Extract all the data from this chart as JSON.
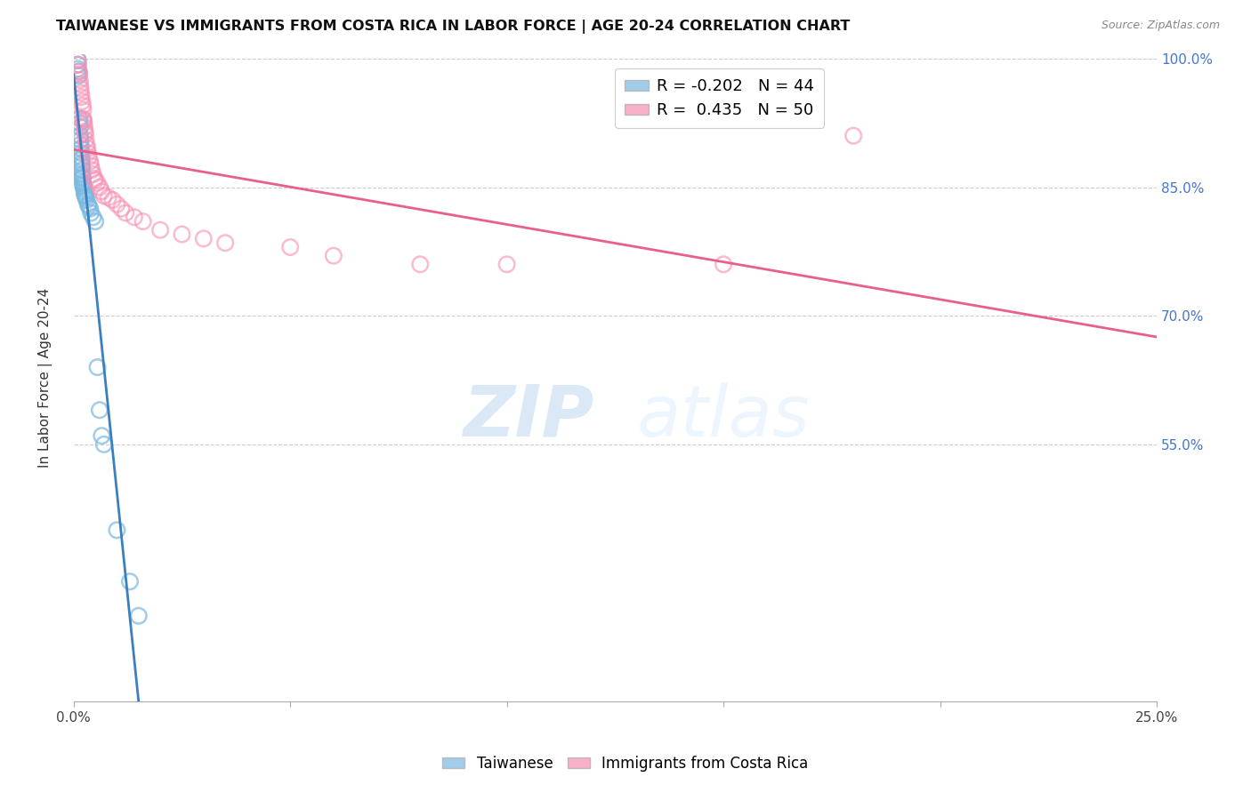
{
  "title": "TAIWANESE VS IMMIGRANTS FROM COSTA RICA IN LABOR FORCE | AGE 20-24 CORRELATION CHART",
  "source": "Source: ZipAtlas.com",
  "ylabel": "In Labor Force | Age 20-24",
  "xlim": [
    0.0,
    0.25
  ],
  "ylim": [
    0.25,
    1.005
  ],
  "x_tick_positions": [
    0.0,
    0.05,
    0.1,
    0.15,
    0.2,
    0.25
  ],
  "x_tick_labels": [
    "0.0%",
    "",
    "",
    "",
    "",
    "25.0%"
  ],
  "y_tick_positions": [
    0.55,
    0.7,
    0.85,
    1.0
  ],
  "right_y_tick_labels": [
    "55.0%",
    "70.0%",
    "85.0%",
    "100.0%"
  ],
  "blue_R": -0.202,
  "blue_N": 44,
  "pink_R": 0.435,
  "pink_N": 50,
  "blue_color": "#7ab9e0",
  "pink_color": "#f78fb3",
  "blue_line_color": "#3a7fc1",
  "pink_line_color": "#e8608a",
  "watermark_zip": "ZIP",
  "watermark_atlas": "atlas",
  "blue_x": [
    0.001,
    0.001,
    0.001,
    0.0012,
    0.0012,
    0.0014,
    0.0014,
    0.0015,
    0.0015,
    0.0016,
    0.0016,
    0.0017,
    0.0017,
    0.0018,
    0.0018,
    0.0019,
    0.0019,
    0.002,
    0.002,
    0.002,
    0.0021,
    0.0021,
    0.0022,
    0.0022,
    0.0023,
    0.0024,
    0.0025,
    0.0025,
    0.0027,
    0.0028,
    0.003,
    0.0033,
    0.0035,
    0.0038,
    0.004,
    0.0045,
    0.005,
    0.0055,
    0.006,
    0.0065,
    0.007,
    0.01,
    0.013,
    0.015
  ],
  "blue_y": [
    0.998,
    0.993,
    0.988,
    0.985,
    0.98,
    0.93,
    0.925,
    0.92,
    0.91,
    0.905,
    0.9,
    0.895,
    0.89,
    0.885,
    0.882,
    0.878,
    0.875,
    0.87,
    0.865,
    0.862,
    0.86,
    0.856,
    0.854,
    0.852,
    0.85,
    0.848,
    0.845,
    0.842,
    0.84,
    0.838,
    0.835,
    0.83,
    0.828,
    0.825,
    0.82,
    0.815,
    0.81,
    0.64,
    0.59,
    0.56,
    0.55,
    0.45,
    0.39,
    0.35
  ],
  "pink_x": [
    0.001,
    0.001,
    0.0012,
    0.0013,
    0.0014,
    0.0015,
    0.0016,
    0.0017,
    0.0018,
    0.002,
    0.0021,
    0.0022,
    0.0022,
    0.0023,
    0.0024,
    0.0025,
    0.0026,
    0.0027,
    0.0028,
    0.003,
    0.0032,
    0.0033,
    0.0035,
    0.0038,
    0.004,
    0.0042,
    0.0045,
    0.0048,
    0.005,
    0.0055,
    0.006,
    0.0065,
    0.007,
    0.008,
    0.009,
    0.01,
    0.011,
    0.012,
    0.014,
    0.016,
    0.02,
    0.025,
    0.03,
    0.035,
    0.05,
    0.06,
    0.08,
    0.1,
    0.15,
    0.18
  ],
  "pink_y": [
    0.998,
    0.993,
    0.985,
    0.982,
    0.975,
    0.97,
    0.965,
    0.96,
    0.955,
    0.95,
    0.945,
    0.94,
    0.93,
    0.928,
    0.925,
    0.92,
    0.915,
    0.912,
    0.905,
    0.9,
    0.895,
    0.89,
    0.885,
    0.88,
    0.875,
    0.87,
    0.865,
    0.86,
    0.858,
    0.855,
    0.85,
    0.845,
    0.84,
    0.838,
    0.835,
    0.83,
    0.825,
    0.82,
    0.815,
    0.81,
    0.8,
    0.795,
    0.79,
    0.785,
    0.78,
    0.77,
    0.76,
    0.76,
    0.76,
    0.91
  ]
}
